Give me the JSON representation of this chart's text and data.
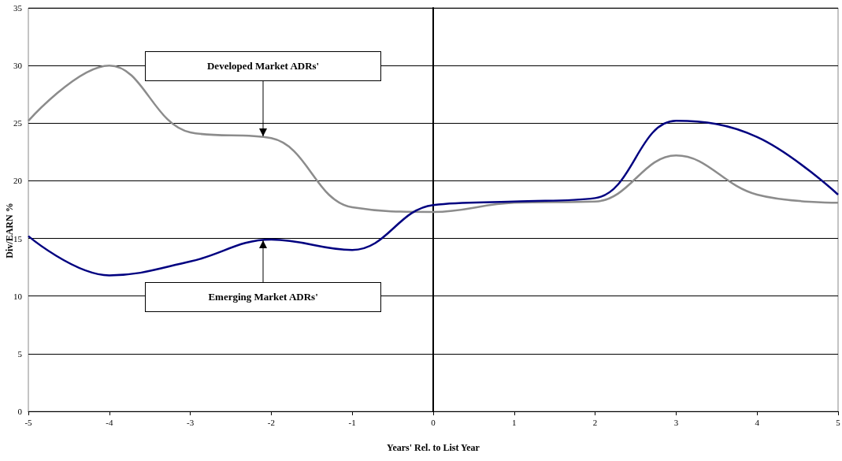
{
  "chart_data": {
    "type": "line",
    "xlabel": "Years' Rel. to List Year",
    "ylabel": "Div/EARN %",
    "x": [
      -5,
      -4,
      -3,
      -2,
      -1,
      0,
      1,
      2,
      3,
      4,
      5
    ],
    "series": [
      {
        "color": "#8c8c8c",
        "values": [
          25.2,
          30,
          24.2,
          23.7,
          17.7,
          17.3,
          18.1,
          18.2,
          22.2,
          18.8,
          18.1
        ]
      },
      {
        "color": "#000080",
        "values": [
          15.2,
          11.8,
          13.0,
          14.9,
          14.0,
          17.9,
          18.2,
          18.5,
          25.2,
          23.8,
          18.8
        ]
      }
    ],
    "xlim": [
      -5,
      5
    ],
    "xticks": [
      -5,
      -4,
      -3,
      -2,
      -1,
      0,
      1,
      2,
      3,
      4,
      5
    ],
    "ylim": [
      0,
      35
    ],
    "yticks": [
      0,
      5,
      10,
      15,
      20,
      25,
      30,
      35
    ],
    "grid": "y",
    "marker": "none",
    "line_style": "solid",
    "annotations": [
      {
        "text": "Developed Market ADRs'",
        "x": -2.1,
        "y": 23.7
      },
      {
        "text": "Emerging Market ADRs'",
        "x": -2.1,
        "y": 15
      }
    ]
  }
}
